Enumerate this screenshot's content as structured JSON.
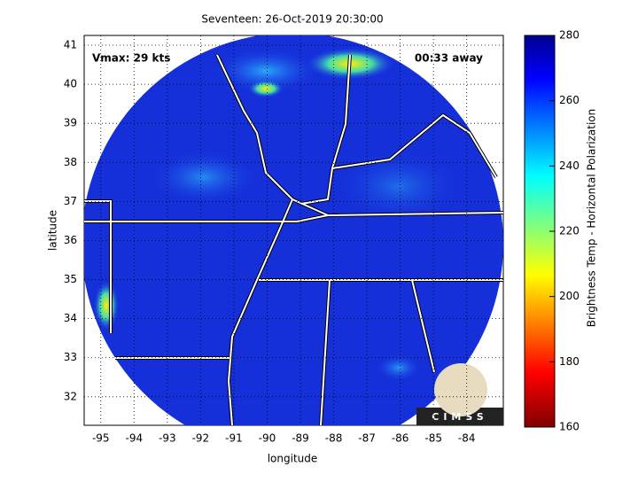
{
  "map": {
    "title": "Seventeen: 26-Oct-2019 20:30:00",
    "xlabel": "longitude",
    "ylabel": "latitude",
    "xlim": [
      -95.5,
      -82.9
    ],
    "ylim": [
      31.27,
      41.25
    ],
    "xticks": [
      -95,
      -94,
      -93,
      -92,
      -91,
      -90,
      -89,
      -88,
      -87,
      -86,
      -85,
      -84
    ],
    "yticks": [
      32,
      33,
      34,
      35,
      36,
      37,
      38,
      39,
      40,
      41
    ],
    "annotations": {
      "vmax": "Vmax: 29 kts",
      "time": "00:33 away"
    },
    "colorbar": {
      "label": "Brightness Temp - Horizontal Polarization",
      "lim": [
        160,
        280
      ],
      "ticks": [
        160,
        180,
        200,
        220,
        240,
        260,
        280
      ]
    },
    "logo": "CIMSS"
  }
}
